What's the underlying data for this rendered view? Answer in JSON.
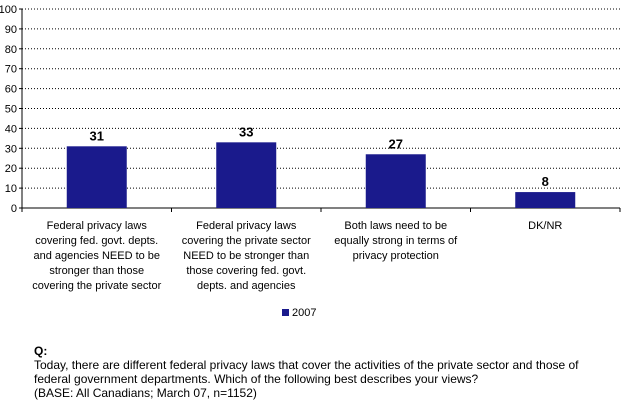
{
  "chart_data": {
    "type": "bar",
    "categories": [
      [
        "Federal privacy laws",
        "covering fed. govt. depts.",
        "and agencies NEED to be",
        "stronger than those",
        "covering the private sector"
      ],
      [
        "Federal privacy laws",
        "covering the private sector",
        "NEED to be stronger than",
        "those covering fed. govt.",
        "depts. and agencies"
      ],
      [
        "Both laws need to be",
        "equally strong in terms of",
        "privacy protection"
      ],
      [
        "DK/NR"
      ]
    ],
    "series": [
      {
        "name": "2007",
        "values": [
          31,
          33,
          27,
          8
        ],
        "color": "#1A1A8C"
      }
    ],
    "data_labels": [
      "31",
      "33",
      "27",
      "8"
    ],
    "ylim": [
      0,
      100
    ],
    "yticks": [
      0,
      10,
      20,
      30,
      40,
      50,
      60,
      70,
      80,
      90,
      100
    ],
    "grid": true,
    "legend": "bottom-center"
  },
  "question": {
    "label": "Q:",
    "lines": [
      "Today, there are different federal privacy laws that cover the activities of the private sector and those of",
      "federal government departments. Which of the following best describes your views?",
      "(BASE:  All Canadians; March 07, n=1152)"
    ]
  }
}
